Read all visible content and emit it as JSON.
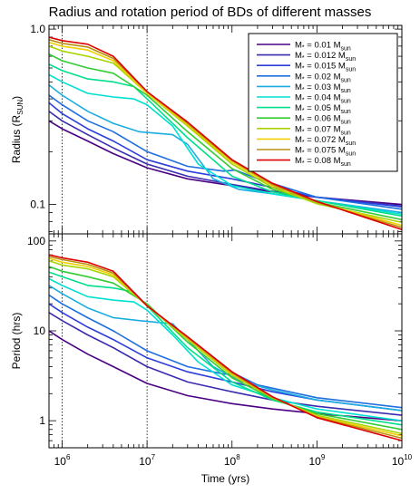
{
  "chart_data": [
    {
      "type": "line",
      "title": "Radius and rotation period of BDs of different masses",
      "ylabel_main": "Radius (R",
      "ylabel_sub": "SUN",
      "ylabel_end": ")",
      "y_scale": "log",
      "ylim": [
        0.068,
        1.05
      ],
      "y_ticks": [
        {
          "value": 0.1,
          "label": "0.1"
        },
        {
          "value": 1.0,
          "label": "1.0"
        }
      ],
      "x_scale": "log",
      "xlim": [
        700000,
        10000000000
      ],
      "reference_lines_x": [
        1000000,
        10000000
      ],
      "legend_placement": "top-right",
      "legend_prefix": "M",
      "legend_unit": "M",
      "legend_unit_sub": "sun",
      "series": [
        {
          "name": "M* = 0.01 Msun",
          "mass": "0.01",
          "color": "#4b0082",
          "x": [
            700000,
            1000000,
            2000000,
            4000000,
            10000000,
            30000000,
            100000000,
            300000000,
            1000000000,
            10000000000
          ],
          "y": [
            0.3,
            0.27,
            0.23,
            0.195,
            0.162,
            0.14,
            0.128,
            0.118,
            0.11,
            0.1
          ]
        },
        {
          "name": "M* = 0.012 Msun",
          "mass": "0.012",
          "color": "#3b2bb0",
          "x": [
            700000,
            1000000,
            2000000,
            4000000,
            10000000,
            30000000,
            100000000,
            300000000,
            1000000000,
            10000000000
          ],
          "y": [
            0.34,
            0.3,
            0.25,
            0.21,
            0.17,
            0.145,
            0.13,
            0.119,
            0.11,
            0.098
          ]
        },
        {
          "name": "M* = 0.015 Msun",
          "mass": "0.015",
          "color": "#2c3edb",
          "x": [
            700000,
            1000000,
            2000000,
            4000000,
            10000000,
            30000000,
            100000000,
            300000000,
            1000000000,
            10000000000
          ],
          "y": [
            0.38,
            0.33,
            0.27,
            0.23,
            0.18,
            0.155,
            0.14,
            0.125,
            0.11,
            0.097
          ]
        },
        {
          "name": "M* = 0.02 Msun",
          "mass": "0.02",
          "color": "#1e6fe0",
          "x": [
            700000,
            1000000,
            2000000,
            4000000,
            10000000,
            30000000,
            80000000,
            110000000,
            200000000,
            1000000000,
            10000000000
          ],
          "y": [
            0.42,
            0.37,
            0.3,
            0.26,
            0.2,
            0.165,
            0.155,
            0.157,
            0.14,
            0.11,
            0.094
          ]
        },
        {
          "name": "M* = 0.03 Msun",
          "mass": "0.03",
          "color": "#1aaee0",
          "x": [
            700000,
            1000000,
            2000000,
            4000000,
            8000000,
            20000000,
            30000000,
            60000000,
            120000000,
            300000000,
            1000000000,
            10000000000
          ],
          "y": [
            0.48,
            0.42,
            0.34,
            0.29,
            0.26,
            0.25,
            0.22,
            0.14,
            0.122,
            0.115,
            0.105,
            0.09
          ]
        },
        {
          "name": "M* = 0.04 Msun",
          "mass": "0.04",
          "color": "#00e0d0",
          "x": [
            700000,
            1000000,
            2000000,
            4000000,
            7000000,
            10000000,
            20000000,
            40000000,
            100000000,
            300000000,
            1000000000,
            10000000000
          ],
          "y": [
            0.55,
            0.5,
            0.43,
            0.41,
            0.4,
            0.37,
            0.28,
            0.17,
            0.128,
            0.115,
            0.105,
            0.088
          ]
        },
        {
          "name": "M* = 0.05 Msun",
          "mass": "0.05",
          "color": "#00e08c",
          "x": [
            700000,
            1000000,
            2000000,
            4000000,
            7000000,
            10000000,
            30000000,
            100000000,
            300000000,
            1000000000,
            10000000000
          ],
          "y": [
            0.63,
            0.58,
            0.52,
            0.5,
            0.47,
            0.4,
            0.24,
            0.145,
            0.118,
            0.105,
            0.086
          ]
        },
        {
          "name": "M* = 0.06 Msun",
          "mass": "0.06",
          "color": "#33cc33",
          "x": [
            700000,
            1000000,
            2000000,
            4000000,
            10000000,
            30000000,
            100000000,
            300000000,
            1000000000,
            10000000000
          ],
          "y": [
            0.72,
            0.66,
            0.6,
            0.56,
            0.42,
            0.26,
            0.16,
            0.122,
            0.103,
            0.082
          ]
        },
        {
          "name": "M* = 0.07 Msun",
          "mass": "0.07",
          "color": "#a8d400",
          "x": [
            700000,
            1000000,
            2000000,
            4000000,
            10000000,
            30000000,
            100000000,
            300000000,
            1000000000,
            10000000000
          ],
          "y": [
            0.8,
            0.75,
            0.7,
            0.64,
            0.43,
            0.28,
            0.17,
            0.125,
            0.101,
            0.079
          ]
        },
        {
          "name": "M* = 0.072 Msun",
          "mass": "0.072",
          "color": "#f0d000",
          "x": [
            700000,
            1000000,
            2000000,
            4000000,
            10000000,
            30000000,
            100000000,
            300000000,
            1000000000,
            10000000000
          ],
          "y": [
            0.84,
            0.8,
            0.76,
            0.66,
            0.43,
            0.285,
            0.175,
            0.128,
            0.103,
            0.076
          ]
        },
        {
          "name": "M* = 0.075 Msun",
          "mass": "0.075",
          "color": "#b89010",
          "x": [
            700000,
            1000000,
            2000000,
            4000000,
            10000000,
            30000000,
            100000000,
            300000000,
            1000000000,
            10000000000
          ],
          "y": [
            0.87,
            0.83,
            0.79,
            0.68,
            0.44,
            0.29,
            0.178,
            0.13,
            0.103,
            0.074
          ]
        },
        {
          "name": "M* = 0.08 Msun",
          "mass": "0.08",
          "color": "#e00000",
          "x": [
            700000,
            1000000,
            2000000,
            4000000,
            10000000,
            30000000,
            100000000,
            300000000,
            1000000000,
            10000000000
          ],
          "y": [
            0.9,
            0.86,
            0.82,
            0.7,
            0.44,
            0.295,
            0.18,
            0.132,
            0.104,
            0.072
          ]
        }
      ]
    },
    {
      "type": "line",
      "ylabel": "Period (hrs)",
      "xlabel": "Time (yrs)",
      "y_scale": "log",
      "ylim": [
        0.5,
        120
      ],
      "y_ticks": [
        {
          "value": 1,
          "label": "1"
        },
        {
          "value": 10,
          "label": "10"
        },
        {
          "value": 100,
          "label": "100"
        }
      ],
      "x_scale": "log",
      "xlim": [
        700000,
        10000000000
      ],
      "x_ticks": [
        {
          "exp": 6,
          "label_base": "10",
          "label_exp": "6"
        },
        {
          "exp": 7,
          "label_base": "10",
          "label_exp": "7"
        },
        {
          "exp": 8,
          "label_base": "10",
          "label_exp": "8"
        },
        {
          "exp": 9,
          "label_base": "10",
          "label_exp": "9"
        },
        {
          "exp": 10,
          "label_base": "10",
          "label_exp": "10"
        }
      ],
      "reference_lines_x": [
        1000000,
        10000000
      ],
      "series": [
        {
          "name": "M* = 0.01 Msun",
          "color": "#4b0082",
          "x": [
            700000,
            1000000,
            2000000,
            4000000,
            10000000,
            30000000,
            100000000,
            300000000,
            1000000000,
            10000000000
          ],
          "y": [
            10.0,
            8.0,
            5.5,
            4.0,
            2.6,
            1.9,
            1.55,
            1.35,
            1.2,
            1.0
          ]
        },
        {
          "name": "M* = 0.012 Msun",
          "color": "#3b2bb0",
          "x": [
            700000,
            1000000,
            2000000,
            4000000,
            10000000,
            30000000,
            100000000,
            300000000,
            1000000000,
            10000000000
          ],
          "y": [
            16,
            13,
            9,
            6.5,
            4.0,
            2.7,
            2.1,
            1.7,
            1.45,
            1.15
          ]
        },
        {
          "name": "M* = 0.015 Msun",
          "color": "#2c3edb",
          "x": [
            700000,
            1000000,
            2000000,
            4000000,
            10000000,
            30000000,
            100000000,
            300000000,
            1000000000,
            10000000000
          ],
          "y": [
            20,
            16,
            11,
            8,
            5.0,
            3.5,
            2.7,
            2.1,
            1.7,
            1.3
          ]
        },
        {
          "name": "M* = 0.02 Msun",
          "color": "#1e6fe0",
          "x": [
            700000,
            1000000,
            2000000,
            4000000,
            10000000,
            30000000,
            80000000,
            110000000,
            200000000,
            1000000000,
            10000000000
          ],
          "y": [
            25,
            20,
            14,
            10,
            6.0,
            4.0,
            3.3,
            3.3,
            2.5,
            1.8,
            1.4
          ]
        },
        {
          "name": "M* = 0.03 Msun",
          "color": "#1aaee0",
          "x": [
            700000,
            1000000,
            2000000,
            4000000,
            8000000,
            20000000,
            30000000,
            60000000,
            120000000,
            300000000,
            1000000000,
            10000000000
          ],
          "y": [
            32,
            26,
            18,
            14,
            13,
            12,
            8,
            4.0,
            2.8,
            2.2,
            1.7,
            1.3
          ]
        },
        {
          "name": "M* = 0.04 Msun",
          "color": "#00e0d0",
          "x": [
            700000,
            1000000,
            2000000,
            4000000,
            7000000,
            10000000,
            20000000,
            40000000,
            100000000,
            300000000,
            1000000000,
            10000000000
          ],
          "y": [
            38,
            32,
            24,
            22,
            21,
            17,
            9,
            4.5,
            2.5,
            1.8,
            1.35,
            1.0
          ]
        },
        {
          "name": "M* = 0.05 Msun",
          "color": "#00e08c",
          "x": [
            700000,
            1000000,
            2000000,
            4000000,
            7000000,
            10000000,
            30000000,
            100000000,
            300000000,
            1000000000,
            10000000000
          ],
          "y": [
            45,
            40,
            32,
            30,
            27,
            19,
            6.5,
            2.7,
            1.7,
            1.25,
            0.9
          ]
        },
        {
          "name": "M* = 0.06 Msun",
          "color": "#33cc33",
          "x": [
            700000,
            1000000,
            2000000,
            4000000,
            10000000,
            30000000,
            100000000,
            300000000,
            1000000000,
            10000000000
          ],
          "y": [
            52,
            46,
            40,
            34,
            20,
            7.5,
            3.0,
            1.75,
            1.2,
            0.8
          ]
        },
        {
          "name": "M* = 0.07 Msun",
          "color": "#a8d400",
          "x": [
            700000,
            1000000,
            2000000,
            4000000,
            10000000,
            30000000,
            100000000,
            300000000,
            1000000000,
            10000000000
          ],
          "y": [
            60,
            54,
            49,
            40,
            19,
            8.0,
            3.2,
            1.8,
            1.15,
            0.72
          ]
        },
        {
          "name": "M* = 0.072 Msun",
          "color": "#f0d000",
          "x": [
            700000,
            1000000,
            2000000,
            4000000,
            10000000,
            30000000,
            100000000,
            300000000,
            1000000000,
            10000000000
          ],
          "y": [
            64,
            58,
            52,
            42,
            19,
            8.2,
            3.3,
            1.8,
            1.12,
            0.68
          ]
        },
        {
          "name": "M* = 0.075 Msun",
          "color": "#b89010",
          "x": [
            700000,
            1000000,
            2000000,
            4000000,
            10000000,
            30000000,
            100000000,
            300000000,
            1000000000,
            10000000000
          ],
          "y": [
            67,
            62,
            55,
            44,
            19,
            8.4,
            3.4,
            1.82,
            1.1,
            0.64
          ]
        },
        {
          "name": "M* = 0.08 Msun",
          "color": "#e00000",
          "x": [
            700000,
            1000000,
            2000000,
            4000000,
            10000000,
            30000000,
            100000000,
            300000000,
            1000000000,
            10000000000
          ],
          "y": [
            70,
            65,
            58,
            46,
            19,
            8.6,
            3.5,
            1.85,
            1.08,
            0.6
          ]
        }
      ]
    }
  ]
}
